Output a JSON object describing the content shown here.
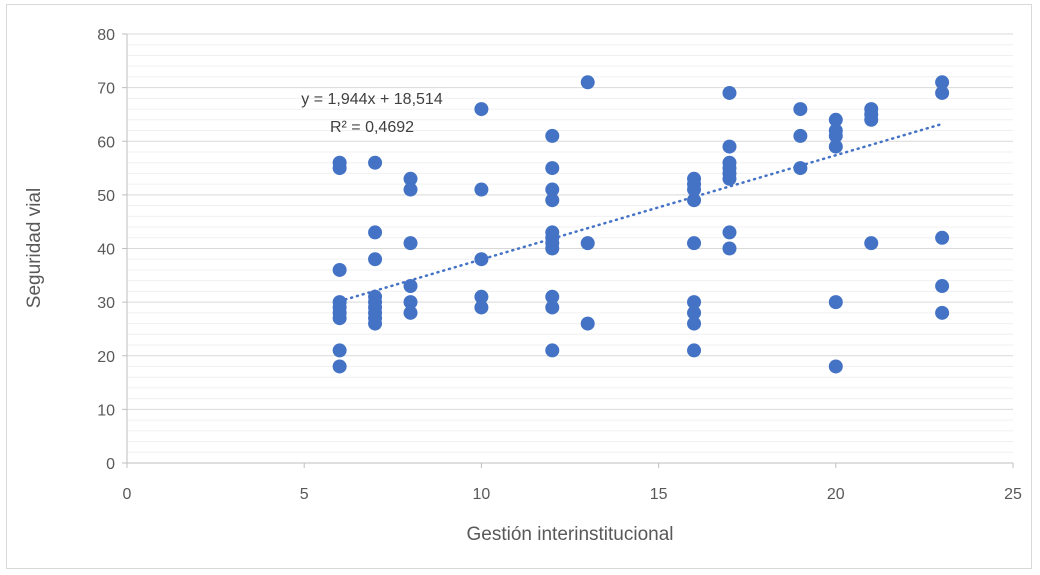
{
  "chart_data": {
    "type": "scatter",
    "title": "",
    "xlabel": "Gestión interinstitucional",
    "ylabel": "Seguridad vial",
    "xlim": [
      0,
      25
    ],
    "ylim": [
      0,
      80
    ],
    "x_ticks": [
      "0",
      "5",
      "10",
      "15",
      "20",
      "25"
    ],
    "y_ticks": [
      "0",
      "10",
      "20",
      "30",
      "40",
      "50",
      "60",
      "70",
      "80"
    ],
    "grid": true,
    "legend": "none",
    "marker_color": "#4472c4",
    "trendline": {
      "type": "linear",
      "slope": 1.944,
      "intercept": 18.514,
      "x_range": [
        6,
        23
      ],
      "style": "dotted",
      "equation_label": "y = 1,944x + 18,514",
      "r2_label": "R² = 0,4692"
    },
    "points": [
      [
        6,
        56
      ],
      [
        6,
        55
      ],
      [
        6,
        36
      ],
      [
        6,
        30
      ],
      [
        6,
        29
      ],
      [
        6,
        28
      ],
      [
        6,
        27
      ],
      [
        6,
        21
      ],
      [
        6,
        18
      ],
      [
        7,
        56
      ],
      [
        7,
        43
      ],
      [
        7,
        38
      ],
      [
        7,
        31
      ],
      [
        7,
        30
      ],
      [
        7,
        29
      ],
      [
        7,
        28
      ],
      [
        7,
        27
      ],
      [
        7,
        26
      ],
      [
        8,
        53
      ],
      [
        8,
        51
      ],
      [
        8,
        41
      ],
      [
        8,
        33
      ],
      [
        8,
        30
      ],
      [
        8,
        28
      ],
      [
        10,
        66
      ],
      [
        10,
        51
      ],
      [
        10,
        38
      ],
      [
        10,
        31
      ],
      [
        10,
        29
      ],
      [
        12,
        61
      ],
      [
        12,
        55
      ],
      [
        12,
        51
      ],
      [
        12,
        49
      ],
      [
        12,
        43
      ],
      [
        12,
        42
      ],
      [
        12,
        41
      ],
      [
        12,
        40
      ],
      [
        12,
        31
      ],
      [
        12,
        29
      ],
      [
        12,
        21
      ],
      [
        13,
        71
      ],
      [
        13,
        41
      ],
      [
        13,
        26
      ],
      [
        16,
        53
      ],
      [
        16,
        52
      ],
      [
        16,
        51
      ],
      [
        16,
        49
      ],
      [
        16,
        41
      ],
      [
        16,
        30
      ],
      [
        16,
        28
      ],
      [
        16,
        26
      ],
      [
        16,
        21
      ],
      [
        17,
        69
      ],
      [
        17,
        59
      ],
      [
        17,
        56
      ],
      [
        17,
        55
      ],
      [
        17,
        54
      ],
      [
        17,
        53
      ],
      [
        17,
        43
      ],
      [
        17,
        40
      ],
      [
        19,
        66
      ],
      [
        19,
        61
      ],
      [
        19,
        55
      ],
      [
        20,
        64
      ],
      [
        20,
        62
      ],
      [
        20,
        61
      ],
      [
        20,
        59
      ],
      [
        20,
        30
      ],
      [
        20,
        18
      ],
      [
        21,
        66
      ],
      [
        21,
        65
      ],
      [
        21,
        64
      ],
      [
        21,
        41
      ],
      [
        23,
        71
      ],
      [
        23,
        69
      ],
      [
        23,
        42
      ],
      [
        23,
        33
      ],
      [
        23,
        28
      ]
    ]
  }
}
